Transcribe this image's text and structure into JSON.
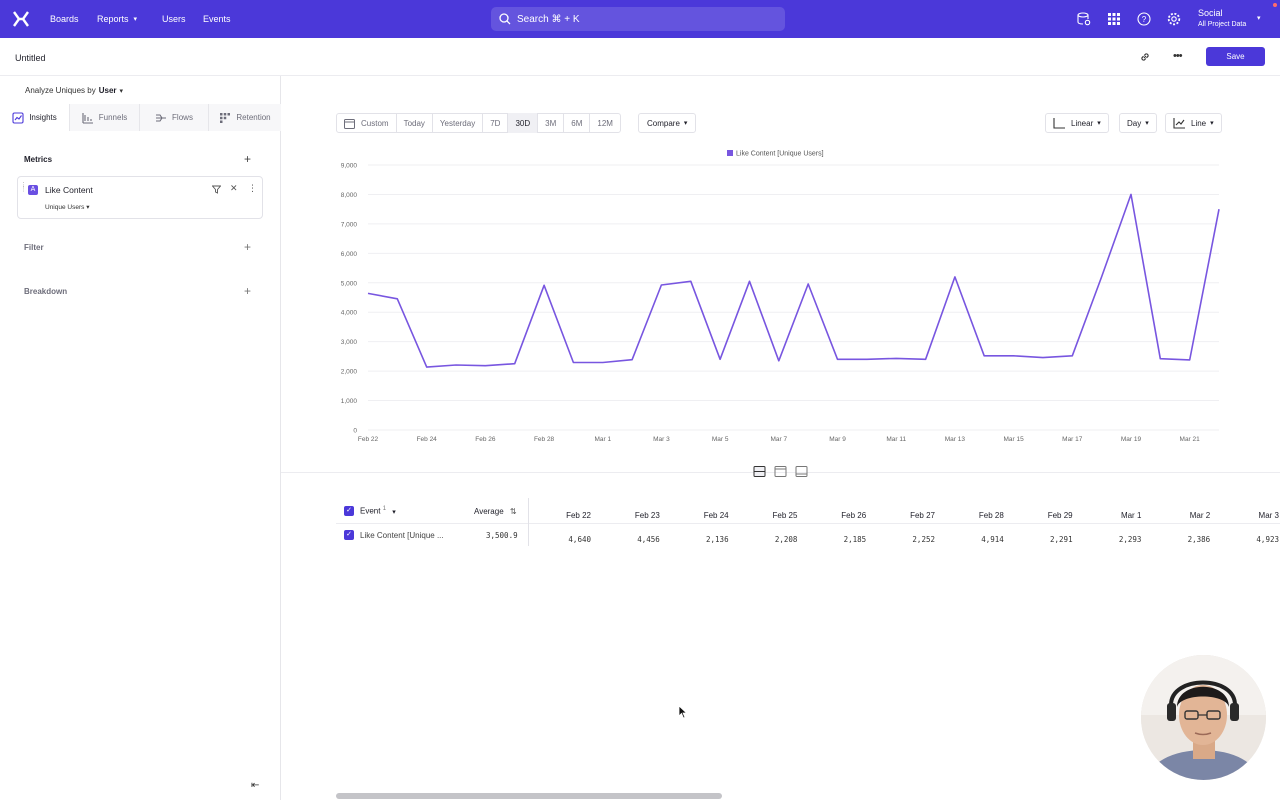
{
  "topnav": {
    "items": [
      {
        "label": "Boards"
      },
      {
        "label": "Reports"
      },
      {
        "label": "Users"
      },
      {
        "label": "Events"
      }
    ],
    "search_placeholder": "Search ⌘ + K",
    "project_name": "Social",
    "project_sub": "All Project Data",
    "accent": "#4b38d9"
  },
  "titlebar": {
    "title": "Untitled",
    "save_label": "Save"
  },
  "sidebar": {
    "analyze_label": "Analyze Uniques by",
    "analyze_value": "User",
    "tabs": [
      {
        "label": "Insights"
      },
      {
        "label": "Funnels"
      },
      {
        "label": "Flows"
      },
      {
        "label": "Retention"
      }
    ],
    "metrics_label": "Metrics",
    "metric": {
      "badge": "A",
      "name": "Like Content",
      "measure": "Unique Users"
    },
    "filter_label": "Filter",
    "breakdown_label": "Breakdown"
  },
  "toolbar": {
    "ranges": [
      {
        "label": "Custom"
      },
      {
        "label": "Today"
      },
      {
        "label": "Yesterday"
      },
      {
        "label": "7D"
      },
      {
        "label": "30D"
      },
      {
        "label": "3M"
      },
      {
        "label": "6M"
      },
      {
        "label": "12M"
      }
    ],
    "selected_range": "30D",
    "compare_label": "Compare",
    "scale_label": "Linear",
    "interval_label": "Day",
    "chart_type_label": "Line"
  },
  "chart_data": {
    "type": "line",
    "legend": "Like Content [Unique Users]",
    "series_color": "#7856e0",
    "ylim": [
      0,
      9000
    ],
    "yticks": [
      "0",
      "1,000",
      "2,000",
      "3,000",
      "4,000",
      "5,000",
      "6,000",
      "7,000",
      "8,000",
      "9,000"
    ],
    "xtick_labels": [
      "Feb 22",
      "Feb 24",
      "Feb 26",
      "Feb 28",
      "Mar 1",
      "Mar 3",
      "Mar 5",
      "Mar 7",
      "Mar 9",
      "Mar 11",
      "Mar 13",
      "Mar 15",
      "Mar 17",
      "Mar 19",
      "Mar 21"
    ],
    "values": [
      4640,
      4456,
      2136,
      2208,
      2185,
      2252,
      4914,
      2291,
      2293,
      2386,
      4923,
      5050,
      2400,
      5050,
      2350,
      4960,
      2400,
      2400,
      2430,
      2400,
      5200,
      2520,
      2520,
      2460,
      2520,
      5200,
      8000,
      2420,
      2380,
      7500
    ]
  },
  "table": {
    "event_col": "Event",
    "event_sup": "1",
    "average_col": "Average",
    "date_cols": [
      "Feb 22",
      "Feb 23",
      "Feb 24",
      "Feb 25",
      "Feb 26",
      "Feb 27",
      "Feb 28",
      "Feb 29",
      "Mar 1",
      "Mar 2",
      "Mar 3"
    ],
    "row": {
      "name": "Like Content [Unique ...",
      "average": "3,500.9",
      "values": [
        "4,640",
        "4,456",
        "2,136",
        "2,208",
        "2,185",
        "2,252",
        "4,914",
        "2,291",
        "2,293",
        "2,386",
        "4,923"
      ]
    }
  }
}
